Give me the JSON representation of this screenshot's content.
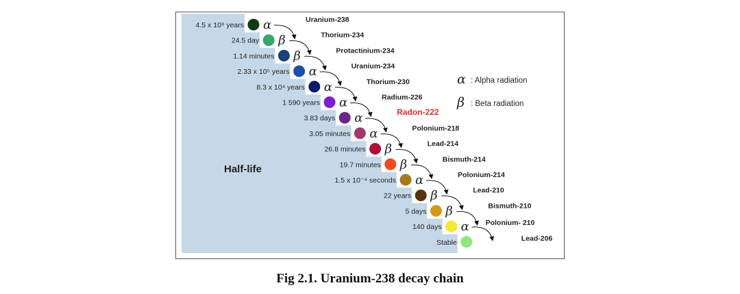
{
  "diagram": {
    "axis_label": "Half-life",
    "legend": [
      {
        "symbol": "α",
        "text": ": Alpha radiation"
      },
      {
        "symbol": "β",
        "text": ": Beta radiation"
      }
    ],
    "steps": [
      {
        "half_life": "4.5 x 10⁹ years",
        "color": "#0f3a14",
        "decay": "α",
        "nuclide": "Uranium-238"
      },
      {
        "half_life": "24.5 day",
        "color": "#3aa66e",
        "decay": "β",
        "nuclide": "Thorium-234"
      },
      {
        "half_life": "1.14 minutes",
        "color": "#1c3f78",
        "decay": "β",
        "nuclide": "Protactinium-234"
      },
      {
        "half_life": "2.33 x 10⁵ years",
        "color": "#1c4fa8",
        "decay": "α",
        "nuclide": "Uranium-234"
      },
      {
        "half_life": "8.3 x 10⁴ years",
        "color": "#0b1a6e",
        "decay": "α",
        "nuclide": "Thorium-230"
      },
      {
        "half_life": "1 590 years",
        "color": "#7b1fd6",
        "decay": "α",
        "nuclide": "Radium-226"
      },
      {
        "half_life": "3.83 days",
        "color": "#6b2685",
        "decay": "α",
        "nuclide": "Radon-222",
        "highlight": "#e53030"
      },
      {
        "half_life": "3.05 minutes",
        "color": "#a03a6a",
        "decay": "α",
        "nuclide": "Polonium-218"
      },
      {
        "half_life": "26.8 minutes",
        "color": "#b0103a",
        "decay": "β",
        "nuclide": "Lead-214"
      },
      {
        "half_life": "19.7 minutes",
        "color": "#f04a1e",
        "decay": "β",
        "nuclide": "Bismuth-214"
      },
      {
        "half_life": "1.5 x 10⁻⁴ seconds",
        "color": "#a87a1c",
        "decay": "α",
        "nuclide": "Polonium-214"
      },
      {
        "half_life": "22 years",
        "color": "#5a3210",
        "decay": "β",
        "nuclide": "Lead-210"
      },
      {
        "half_life": "5 days",
        "color": "#d69a18",
        "decay": "β",
        "nuclide": "Bismuth-210"
      },
      {
        "half_life": "140 days",
        "color": "#f7e82e",
        "decay": "α",
        "nuclide": "Polonium- 210"
      },
      {
        "half_life": "Stable",
        "color": "#8ee87a",
        "decay": "",
        "nuclide": "Lead-206"
      }
    ]
  },
  "caption": "Fig 2.1. Uranium-238 decay chain"
}
